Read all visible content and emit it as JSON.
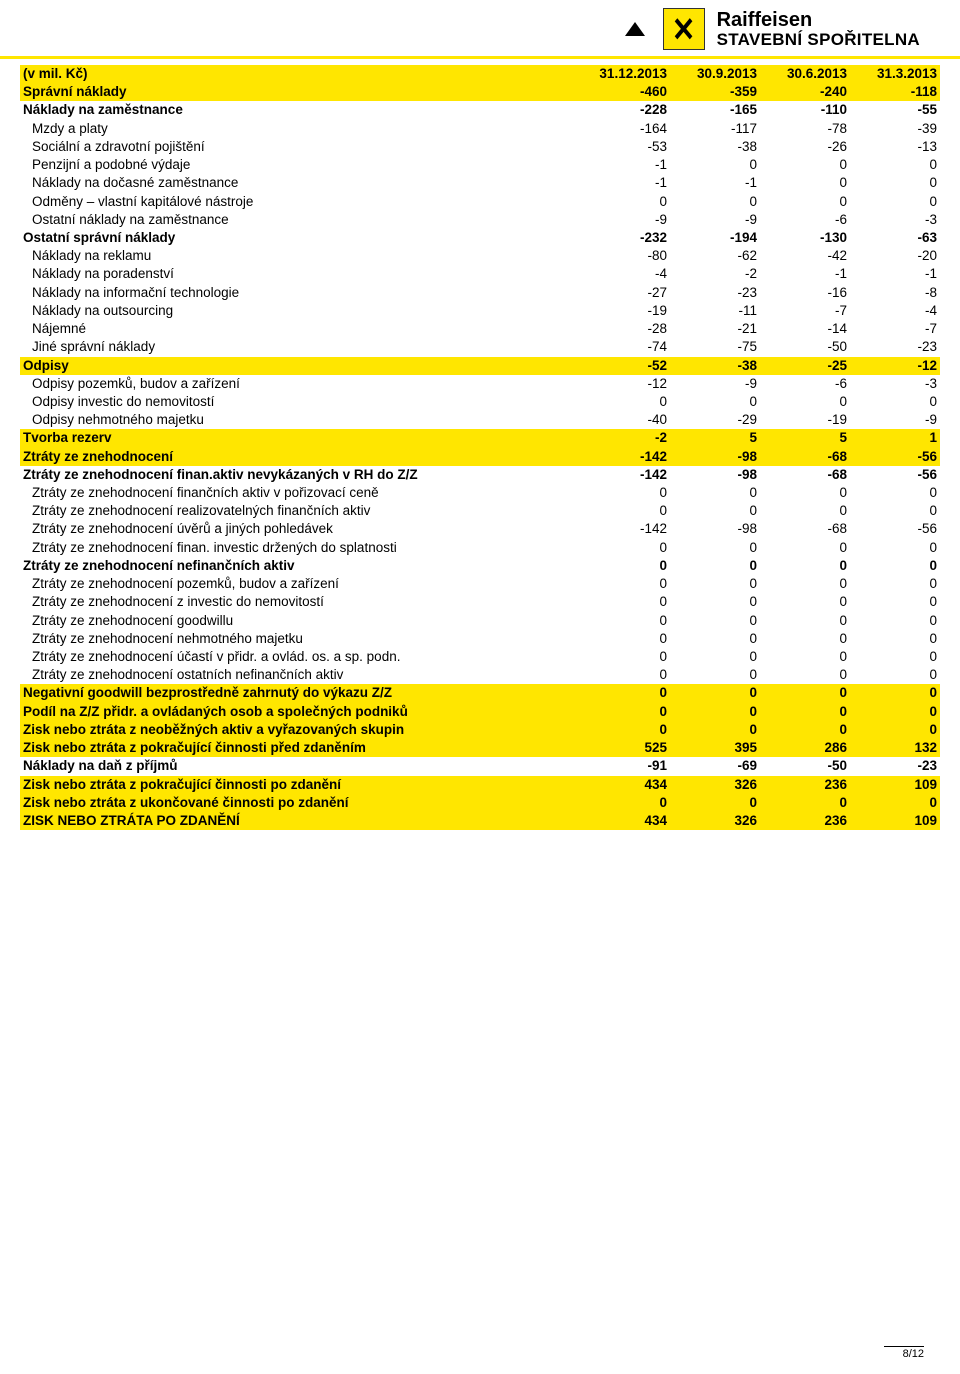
{
  "brand": {
    "line1": "Raiffeisen",
    "line2": "STAVEBNÍ SPOŘITELNA"
  },
  "table": {
    "headers": [
      "(v mil. Kč)",
      "31.12.2013",
      "30.9.2013",
      "30.6.2013",
      "31.3.2013"
    ],
    "rows": [
      {
        "label": "Správní náklady",
        "v": [
          "-460",
          "-359",
          "-240",
          "-118"
        ],
        "hl": true,
        "bold": true,
        "indent": 0
      },
      {
        "label": "Náklady na zaměstnance",
        "v": [
          "-228",
          "-165",
          "-110",
          "-55"
        ],
        "bold": true,
        "indent": 0
      },
      {
        "label": "Mzdy a platy",
        "v": [
          "-164",
          "-117",
          "-78",
          "-39"
        ],
        "indent": 1
      },
      {
        "label": "Sociální a zdravotní pojištění",
        "v": [
          "-53",
          "-38",
          "-26",
          "-13"
        ],
        "indent": 1
      },
      {
        "label": "Penzijní a podobné výdaje",
        "v": [
          "-1",
          "0",
          "0",
          "0"
        ],
        "indent": 1
      },
      {
        "label": "Náklady na dočasné zaměstnance",
        "v": [
          "-1",
          "-1",
          "0",
          "0"
        ],
        "indent": 1
      },
      {
        "label": "Odměny – vlastní kapitálové nástroje",
        "v": [
          "0",
          "0",
          "0",
          "0"
        ],
        "indent": 1
      },
      {
        "label": "Ostatní náklady na zaměstnance",
        "v": [
          "-9",
          "-9",
          "-6",
          "-3"
        ],
        "indent": 1
      },
      {
        "label": "Ostatní správní náklady",
        "v": [
          "-232",
          "-194",
          "-130",
          "-63"
        ],
        "bold": true,
        "indent": 0
      },
      {
        "label": "Náklady na reklamu",
        "v": [
          "-80",
          "-62",
          "-42",
          "-20"
        ],
        "indent": 1
      },
      {
        "label": "Náklady na poradenství",
        "v": [
          "-4",
          "-2",
          "-1",
          "-1"
        ],
        "indent": 1
      },
      {
        "label": "Náklady na informační technologie",
        "v": [
          "-27",
          "-23",
          "-16",
          "-8"
        ],
        "indent": 1
      },
      {
        "label": "Náklady na outsourcing",
        "v": [
          "-19",
          "-11",
          "-7",
          "-4"
        ],
        "indent": 1
      },
      {
        "label": "Nájemné",
        "v": [
          "-28",
          "-21",
          "-14",
          "-7"
        ],
        "indent": 1
      },
      {
        "label": "Jiné správní náklady",
        "v": [
          "-74",
          "-75",
          "-50",
          "-23"
        ],
        "indent": 1
      },
      {
        "label": "Odpisy",
        "v": [
          "-52",
          "-38",
          "-25",
          "-12"
        ],
        "hl": true,
        "bold": true,
        "indent": 0
      },
      {
        "label": "Odpisy pozemků, budov a zařízení",
        "v": [
          "-12",
          "-9",
          "-6",
          "-3"
        ],
        "indent": 1
      },
      {
        "label": "Odpisy investic do nemovitostí",
        "v": [
          "0",
          "0",
          "0",
          "0"
        ],
        "indent": 1
      },
      {
        "label": "Odpisy nehmotného majetku",
        "v": [
          "-40",
          "-29",
          "-19",
          "-9"
        ],
        "indent": 1
      },
      {
        "label": "Tvorba rezerv",
        "v": [
          "-2",
          "5",
          "5",
          "1"
        ],
        "hl": true,
        "bold": true,
        "indent": 0
      },
      {
        "label": "Ztráty ze znehodnocení",
        "v": [
          "-142",
          "-98",
          "-68",
          "-56"
        ],
        "hl": true,
        "bold": true,
        "indent": 0
      },
      {
        "label": "Ztráty ze znehodnocení finan.aktiv nevykázaných v RH do Z/Z",
        "v": [
          "-142",
          "-98",
          "-68",
          "-56"
        ],
        "bold": true,
        "indent": 0
      },
      {
        "label": "Ztráty ze znehodnocení finančních aktiv v pořizovací ceně",
        "v": [
          "0",
          "0",
          "0",
          "0"
        ],
        "indent": 1
      },
      {
        "label": "Ztráty ze znehodnocení realizovatelných finančních aktiv",
        "v": [
          "0",
          "0",
          "0",
          "0"
        ],
        "indent": 1
      },
      {
        "label": "Ztráty ze znehodnocení úvěrů a jiných pohledávek",
        "v": [
          "-142",
          "-98",
          "-68",
          "-56"
        ],
        "indent": 1
      },
      {
        "label": "Ztráty ze znehodnocení finan. investic držených do splatnosti",
        "v": [
          "0",
          "0",
          "0",
          "0"
        ],
        "indent": 1
      },
      {
        "label": "Ztráty ze znehodnocení nefinančních aktiv",
        "v": [
          "0",
          "0",
          "0",
          "0"
        ],
        "bold": true,
        "indent": 0
      },
      {
        "label": "Ztráty ze znehodnocení pozemků, budov a zařízení",
        "v": [
          "0",
          "0",
          "0",
          "0"
        ],
        "indent": 1
      },
      {
        "label": "Ztráty ze znehodnocení z investic do nemovitostí",
        "v": [
          "0",
          "0",
          "0",
          "0"
        ],
        "indent": 1
      },
      {
        "label": "Ztráty ze znehodnocení goodwillu",
        "v": [
          "0",
          "0",
          "0",
          "0"
        ],
        "indent": 1
      },
      {
        "label": "Ztráty ze znehodnocení nehmotného majetku",
        "v": [
          "0",
          "0",
          "0",
          "0"
        ],
        "indent": 1
      },
      {
        "label": "Ztráty ze znehodnocení účastí v přidr. a ovlád. os. a sp. podn.",
        "v": [
          "0",
          "0",
          "0",
          "0"
        ],
        "indent": 1
      },
      {
        "label": "Ztráty ze znehodnocení ostatních nefinančních aktiv",
        "v": [
          "0",
          "0",
          "0",
          "0"
        ],
        "indent": 1
      },
      {
        "label": "Negativní goodwill bezprostředně zahrnutý do výkazu Z/Z",
        "v": [
          "0",
          "0",
          "0",
          "0"
        ],
        "hl": true,
        "bold": true,
        "indent": 0
      },
      {
        "label": "Podíl na Z/Z přidr. a ovládaných osob a společných podniků",
        "v": [
          "0",
          "0",
          "0",
          "0"
        ],
        "hl": true,
        "bold": true,
        "indent": 0
      },
      {
        "label": "Zisk nebo ztráta z neoběžných aktiv a vyřazovaných skupin",
        "v": [
          "0",
          "0",
          "0",
          "0"
        ],
        "hl": true,
        "bold": true,
        "indent": 0
      },
      {
        "label": "Zisk nebo ztráta z pokračující činnosti před zdaněním",
        "v": [
          "525",
          "395",
          "286",
          "132"
        ],
        "hl": true,
        "bold": true,
        "indent": 0
      },
      {
        "label": "Náklady na daň z příjmů",
        "v": [
          "-91",
          "-69",
          "-50",
          "-23"
        ],
        "bold": true,
        "indent": 0
      },
      {
        "label": "Zisk nebo ztráta z pokračující činnosti po zdanění",
        "v": [
          "434",
          "326",
          "236",
          "109"
        ],
        "hl": true,
        "bold": true,
        "indent": 0
      },
      {
        "label": "Zisk nebo ztráta z ukončované činnosti po zdanění",
        "v": [
          "0",
          "0",
          "0",
          "0"
        ],
        "hl": true,
        "bold": true,
        "indent": 0
      },
      {
        "label": "ZISK NEBO ZTRÁTA PO ZDANĚNÍ",
        "v": [
          "434",
          "326",
          "236",
          "109"
        ],
        "hl": true,
        "bold": true,
        "indent": 0
      }
    ]
  },
  "footer": "8/12",
  "colors": {
    "highlight": "#ffe600",
    "text": "#000000",
    "bg": "#ffffff"
  }
}
